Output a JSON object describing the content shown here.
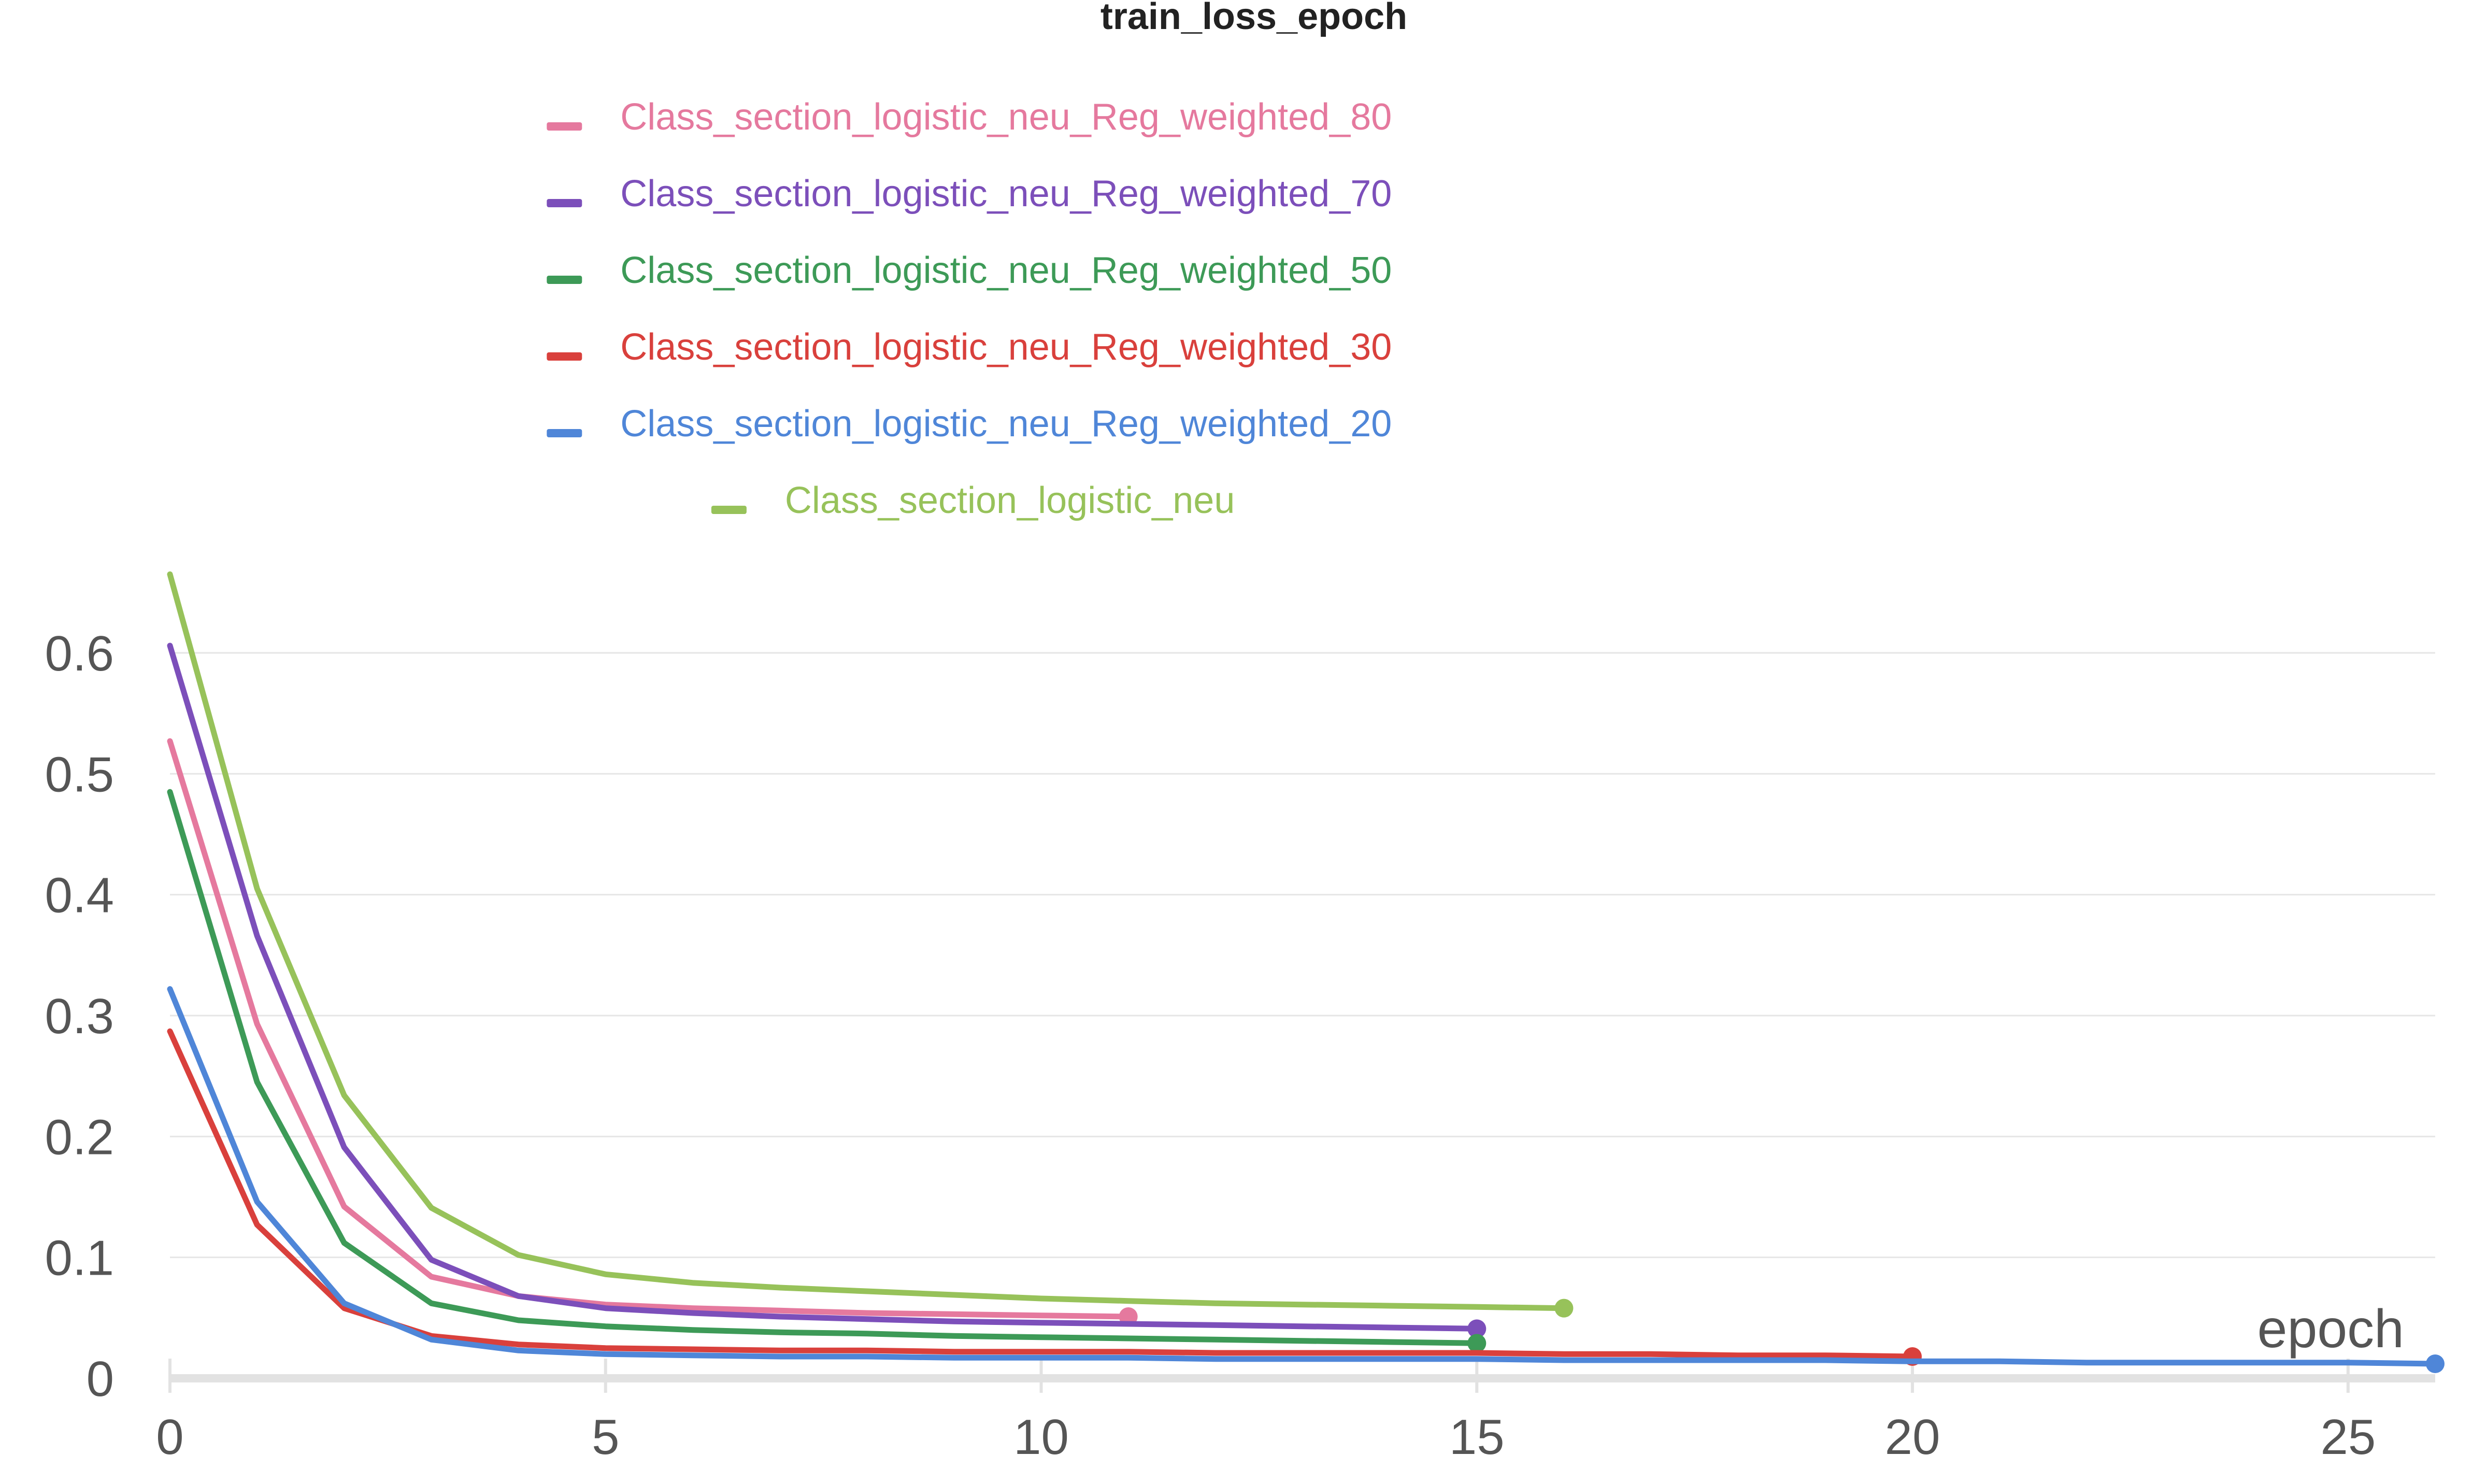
{
  "chart_data": {
    "type": "line",
    "title": "train_loss_epoch",
    "xlabel": "epoch",
    "ylabel": "",
    "xlim": [
      0,
      26
    ],
    "ylim": [
      0,
      0.66
    ],
    "xticks": [
      0,
      5,
      10,
      15,
      20,
      25
    ],
    "yticks": [
      0,
      0.1,
      0.2,
      0.3,
      0.4,
      0.5,
      0.6
    ],
    "grid": true,
    "legend_position": "top",
    "series": [
      {
        "name": "Class_section_logistic_neu_Reg_weighted_80",
        "color": "#e5799e",
        "x": [
          0,
          1,
          2,
          3,
          4,
          5,
          6,
          7,
          8,
          9,
          10,
          11
        ],
        "y": [
          0.527,
          0.293,
          0.142,
          0.084,
          0.068,
          0.061,
          0.058,
          0.056,
          0.054,
          0.053,
          0.052,
          0.051
        ]
      },
      {
        "name": "Class_section_logistic_neu_Reg_weighted_70",
        "color": "#7c4fba",
        "x": [
          0,
          1,
          2,
          3,
          4,
          5,
          6,
          7,
          8,
          9,
          10,
          11,
          12,
          13,
          14,
          15
        ],
        "y": [
          0.606,
          0.366,
          0.191,
          0.098,
          0.068,
          0.058,
          0.054,
          0.051,
          0.049,
          0.047,
          0.046,
          0.045,
          0.044,
          0.043,
          0.042,
          0.041
        ]
      },
      {
        "name": "Class_section_logistic_neu_Reg_weighted_50",
        "color": "#3d9a57",
        "x": [
          0,
          1,
          2,
          3,
          4,
          5,
          6,
          7,
          8,
          9,
          10,
          11,
          12,
          13,
          14,
          15
        ],
        "y": [
          0.485,
          0.245,
          0.112,
          0.062,
          0.048,
          0.043,
          0.04,
          0.038,
          0.037,
          0.035,
          0.034,
          0.033,
          0.032,
          0.031,
          0.03,
          0.029
        ]
      },
      {
        "name": "Class_section_logistic_neu_Reg_weighted_30",
        "color": "#d9403c",
        "x": [
          0,
          1,
          2,
          3,
          4,
          5,
          6,
          7,
          8,
          9,
          10,
          11,
          12,
          13,
          14,
          15,
          16,
          17,
          18,
          19,
          20
        ],
        "y": [
          0.287,
          0.127,
          0.058,
          0.035,
          0.028,
          0.025,
          0.024,
          0.023,
          0.023,
          0.022,
          0.022,
          0.022,
          0.021,
          0.021,
          0.021,
          0.021,
          0.02,
          0.02,
          0.019,
          0.019,
          0.018
        ]
      },
      {
        "name": "Class_section_logistic_neu_Reg_weighted_20",
        "color": "#4f86d8",
        "x": [
          0,
          1,
          2,
          3,
          4,
          5,
          6,
          7,
          8,
          9,
          10,
          11,
          12,
          13,
          14,
          15,
          16,
          17,
          18,
          19,
          20,
          21,
          22,
          23,
          24,
          25,
          26
        ],
        "y": [
          0.322,
          0.146,
          0.062,
          0.032,
          0.023,
          0.02,
          0.019,
          0.018,
          0.018,
          0.017,
          0.017,
          0.017,
          0.016,
          0.016,
          0.016,
          0.016,
          0.015,
          0.015,
          0.015,
          0.015,
          0.014,
          0.014,
          0.013,
          0.013,
          0.013,
          0.013,
          0.012
        ]
      },
      {
        "name": "Class_section_logistic_neu",
        "color": "#97c25a",
        "x": [
          0,
          1,
          2,
          3,
          4,
          5,
          6,
          7,
          8,
          9,
          10,
          11,
          12,
          13,
          14,
          15,
          16
        ],
        "y": [
          0.665,
          0.405,
          0.234,
          0.141,
          0.102,
          0.086,
          0.079,
          0.075,
          0.072,
          0.069,
          0.066,
          0.064,
          0.062,
          0.061,
          0.06,
          0.059,
          0.058
        ]
      }
    ]
  }
}
